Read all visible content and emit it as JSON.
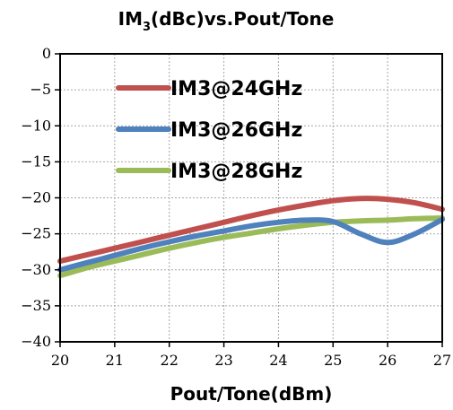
{
  "chart_data": {
    "type": "line",
    "title": {
      "main": "IM",
      "sub": "3",
      "rest": "(dBc)vs.Pout/Tone"
    },
    "xlabel": "Pout/Tone(dBm)",
    "ylabel": "",
    "xlim": [
      20,
      27
    ],
    "ylim": [
      -40,
      0
    ],
    "xticks": [
      20,
      21,
      22,
      23,
      24,
      25,
      26,
      27
    ],
    "yticks": [
      0,
      -5,
      -10,
      -15,
      -20,
      -25,
      -30,
      -35,
      -40
    ],
    "ytick_labels": [
      "0",
      "−5",
      "−10",
      "−15",
      "−20",
      "−25",
      "−30",
      "−35",
      "−40"
    ],
    "grid": true,
    "legend_position": "top-left",
    "series": [
      {
        "name": "IM3@24GHz",
        "color": "#c0504d",
        "x": [
          20,
          20.5,
          21,
          21.5,
          22,
          22.5,
          23,
          23.5,
          24,
          24.5,
          25,
          25.5,
          26,
          26.5,
          27
        ],
        "y": [
          -28.8,
          -27.9,
          -27.0,
          -26.1,
          -25.2,
          -24.3,
          -23.4,
          -22.5,
          -21.7,
          -21.0,
          -20.4,
          -20.1,
          -20.2,
          -20.7,
          -21.6
        ]
      },
      {
        "name": "IM3@26GHz",
        "color": "#4f81bd",
        "x": [
          20,
          20.5,
          21,
          21.5,
          22,
          22.5,
          23,
          23.5,
          24,
          24.5,
          25,
          25.5,
          26,
          26.5,
          27
        ],
        "y": [
          -30.0,
          -29.0,
          -28.0,
          -27.0,
          -26.1,
          -25.3,
          -24.6,
          -23.9,
          -23.4,
          -23.1,
          -23.3,
          -25.0,
          -26.2,
          -25.0,
          -23.0
        ]
      },
      {
        "name": "IM3@28GHz",
        "color": "#9bbb59",
        "x": [
          20,
          20.5,
          21,
          21.5,
          22,
          22.5,
          23,
          23.5,
          24,
          24.5,
          25,
          25.5,
          26,
          26.5,
          27
        ],
        "y": [
          -30.8,
          -29.7,
          -28.8,
          -27.9,
          -27.0,
          -26.2,
          -25.5,
          -24.9,
          -24.3,
          -23.8,
          -23.4,
          -23.2,
          -23.1,
          -22.9,
          -22.8
        ]
      }
    ]
  }
}
